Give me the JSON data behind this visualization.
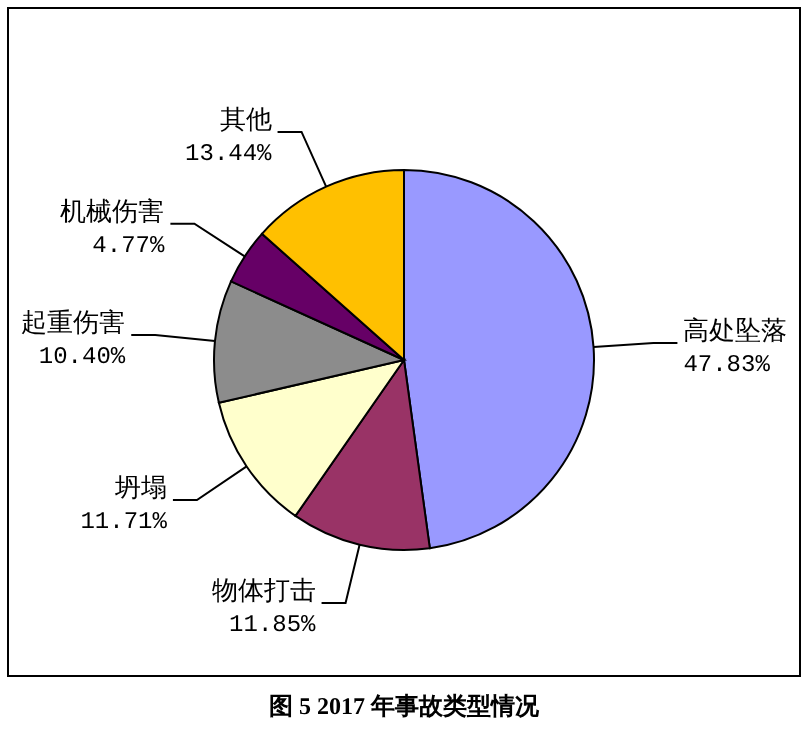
{
  "chart_data": {
    "type": "pie",
    "title": "图 5   2017 年事故类型情况",
    "categories": [
      "高处坠落",
      "物体打击",
      "坍塌",
      "起重伤害",
      "机械伤害",
      "其他"
    ],
    "values": [
      47.83,
      11.85,
      11.71,
      10.4,
      4.77,
      13.44
    ],
    "colors": [
      "#9999ff",
      "#993366",
      "#ffffcc",
      "#8c8c8c",
      "#660066",
      "#ffc000"
    ],
    "value_labels": [
      "47.83%",
      "11.85%",
      "11.71%",
      "10.40%",
      "4.77%",
      "13.44%"
    ]
  }
}
